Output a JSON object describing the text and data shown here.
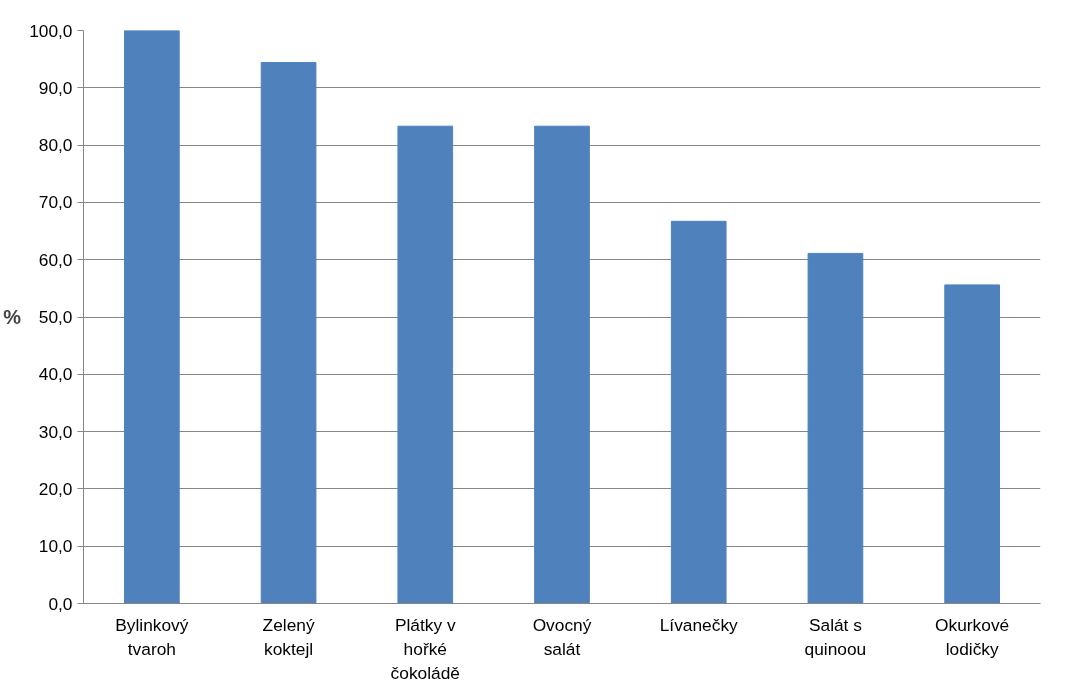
{
  "chart_data": {
    "type": "bar",
    "ylabel": "%",
    "categories": [
      "Bylinkový tvaroh",
      "Zelený koktejl",
      "Plátky v hořké čokoládě",
      "Ovocný salát",
      "Lívanečky",
      "Salát s quinoou",
      "Okurkové lodičky"
    ],
    "values": [
      100,
      94.4,
      83.3,
      83.3,
      66.7,
      61.1,
      55.6
    ],
    "color": "#4f81bd",
    "ylim": [
      0,
      100
    ],
    "yticks": [
      {
        "value": 0,
        "label": "0,0"
      },
      {
        "value": 10,
        "label": "10,0"
      },
      {
        "value": 20,
        "label": "20,0"
      },
      {
        "value": 30,
        "label": "30,0"
      },
      {
        "value": 40,
        "label": "40,0"
      },
      {
        "value": 50,
        "label": "50,0"
      },
      {
        "value": 60,
        "label": "60,0"
      },
      {
        "value": 70,
        "label": "70,0"
      },
      {
        "value": 80,
        "label": "80,0"
      },
      {
        "value": 90,
        "label": "90,0"
      },
      {
        "value": 100,
        "label": "100,0"
      }
    ],
    "grid": "y"
  }
}
